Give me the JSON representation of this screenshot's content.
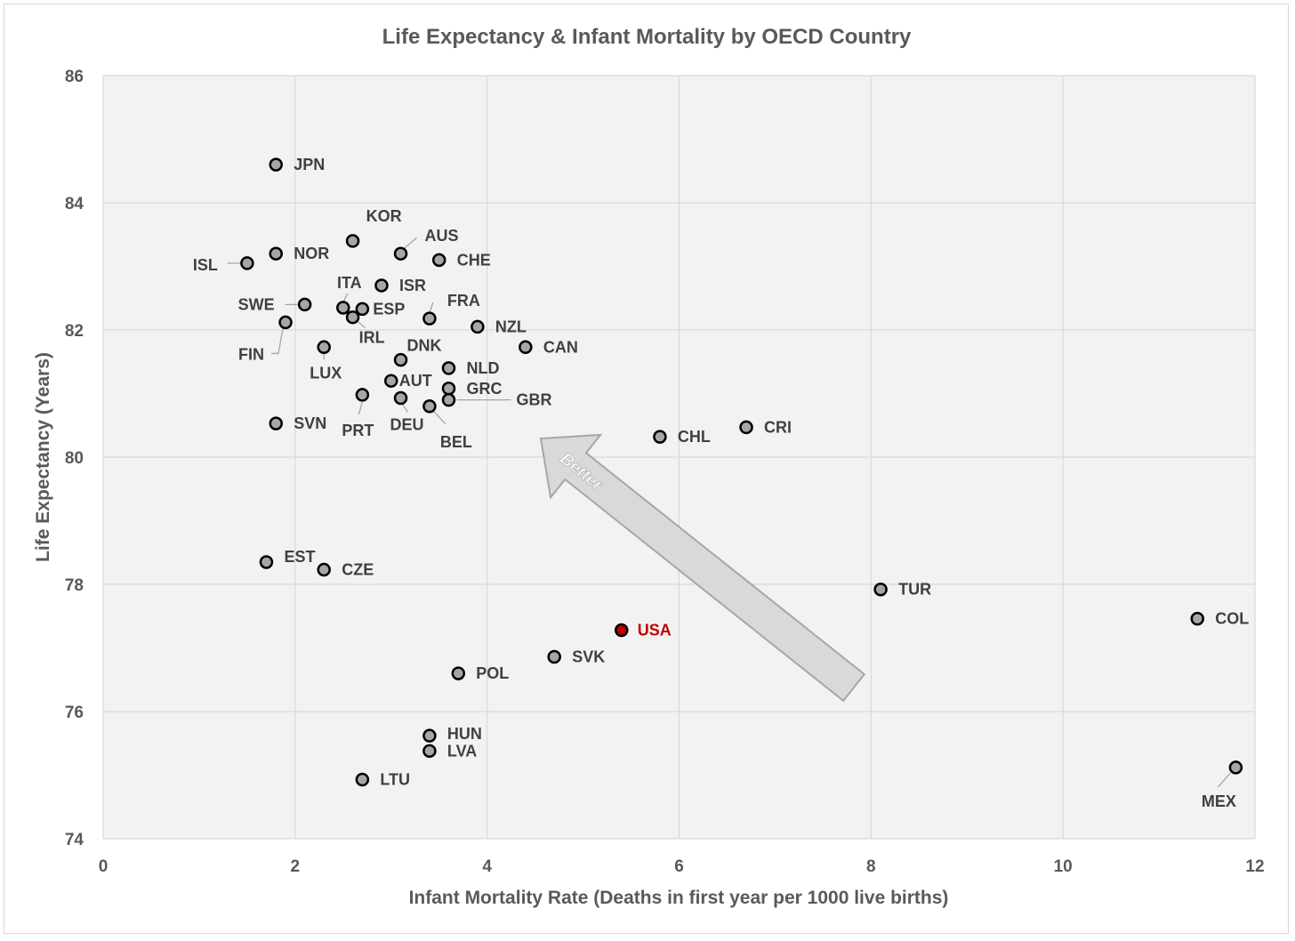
{
  "chart_data": {
    "type": "scatter",
    "title": "Life Expectancy & Infant Mortality by OECD Country",
    "xlabel": "Infant Mortality Rate (Deaths in first year per 1000 live births)",
    "ylabel": "Life Expectancy (Years)",
    "xlim": [
      0,
      12
    ],
    "ylim": [
      74,
      86
    ],
    "xticks": [
      "0",
      "2",
      "4",
      "6",
      "8",
      "10",
      "12"
    ],
    "yticks": [
      "74",
      "76",
      "78",
      "80",
      "82",
      "84",
      "86"
    ],
    "grid": true,
    "colors": {
      "background": "#f2f2f2",
      "grid": "#d9d9d9",
      "point": "#a6a6a6",
      "highlight": "#c00000",
      "label": "#404040",
      "arrow": "#d9d9d9"
    },
    "annotation": "Better",
    "points": [
      {
        "label": "JPN",
        "x": 1.8,
        "y": 84.6
      },
      {
        "label": "KOR",
        "x": 2.6,
        "y": 83.4
      },
      {
        "label": "AUS",
        "x": 3.1,
        "y": 83.2
      },
      {
        "label": "NOR",
        "x": 1.8,
        "y": 83.2
      },
      {
        "label": "ISL",
        "x": 1.5,
        "y": 83.05
      },
      {
        "label": "CHE",
        "x": 3.5,
        "y": 83.1
      },
      {
        "label": "ISR",
        "x": 2.9,
        "y": 82.7
      },
      {
        "label": "ITA",
        "x": 2.5,
        "y": 82.35
      },
      {
        "label": "ESP",
        "x": 2.7,
        "y": 82.33
      },
      {
        "label": "SWE",
        "x": 2.1,
        "y": 82.4
      },
      {
        "label": "FRA",
        "x": 3.4,
        "y": 82.18
      },
      {
        "label": "IRL",
        "x": 2.6,
        "y": 82.2
      },
      {
        "label": "FIN",
        "x": 1.9,
        "y": 82.12
      },
      {
        "label": "NZL",
        "x": 3.9,
        "y": 82.05
      },
      {
        "label": "CAN",
        "x": 4.4,
        "y": 81.73
      },
      {
        "label": "LUX",
        "x": 2.3,
        "y": 81.73
      },
      {
        "label": "DNK",
        "x": 3.1,
        "y": 81.53
      },
      {
        "label": "NLD",
        "x": 3.6,
        "y": 81.4
      },
      {
        "label": "AUT",
        "x": 3.0,
        "y": 81.2
      },
      {
        "label": "GRC",
        "x": 3.6,
        "y": 81.08
      },
      {
        "label": "PRT",
        "x": 2.7,
        "y": 80.98
      },
      {
        "label": "DEU",
        "x": 3.1,
        "y": 80.93
      },
      {
        "label": "GBR",
        "x": 3.6,
        "y": 80.9
      },
      {
        "label": "BEL",
        "x": 3.4,
        "y": 80.8
      },
      {
        "label": "SVN",
        "x": 1.8,
        "y": 80.53
      },
      {
        "label": "CRI",
        "x": 6.7,
        "y": 80.47
      },
      {
        "label": "CHL",
        "x": 5.8,
        "y": 80.32
      },
      {
        "label": "EST",
        "x": 1.7,
        "y": 78.35
      },
      {
        "label": "CZE",
        "x": 2.3,
        "y": 78.23
      },
      {
        "label": "TUR",
        "x": 8.1,
        "y": 77.92
      },
      {
        "label": "COL",
        "x": 11.4,
        "y": 77.46
      },
      {
        "label": "USA",
        "x": 5.4,
        "y": 77.28,
        "highlight": true
      },
      {
        "label": "SVK",
        "x": 4.7,
        "y": 76.86
      },
      {
        "label": "POL",
        "x": 3.7,
        "y": 76.6
      },
      {
        "label": "HUN",
        "x": 3.4,
        "y": 75.62
      },
      {
        "label": "LVA",
        "x": 3.4,
        "y": 75.38
      },
      {
        "label": "MEX",
        "x": 11.8,
        "y": 75.12
      },
      {
        "label": "LTU",
        "x": 2.7,
        "y": 74.93
      }
    ]
  }
}
